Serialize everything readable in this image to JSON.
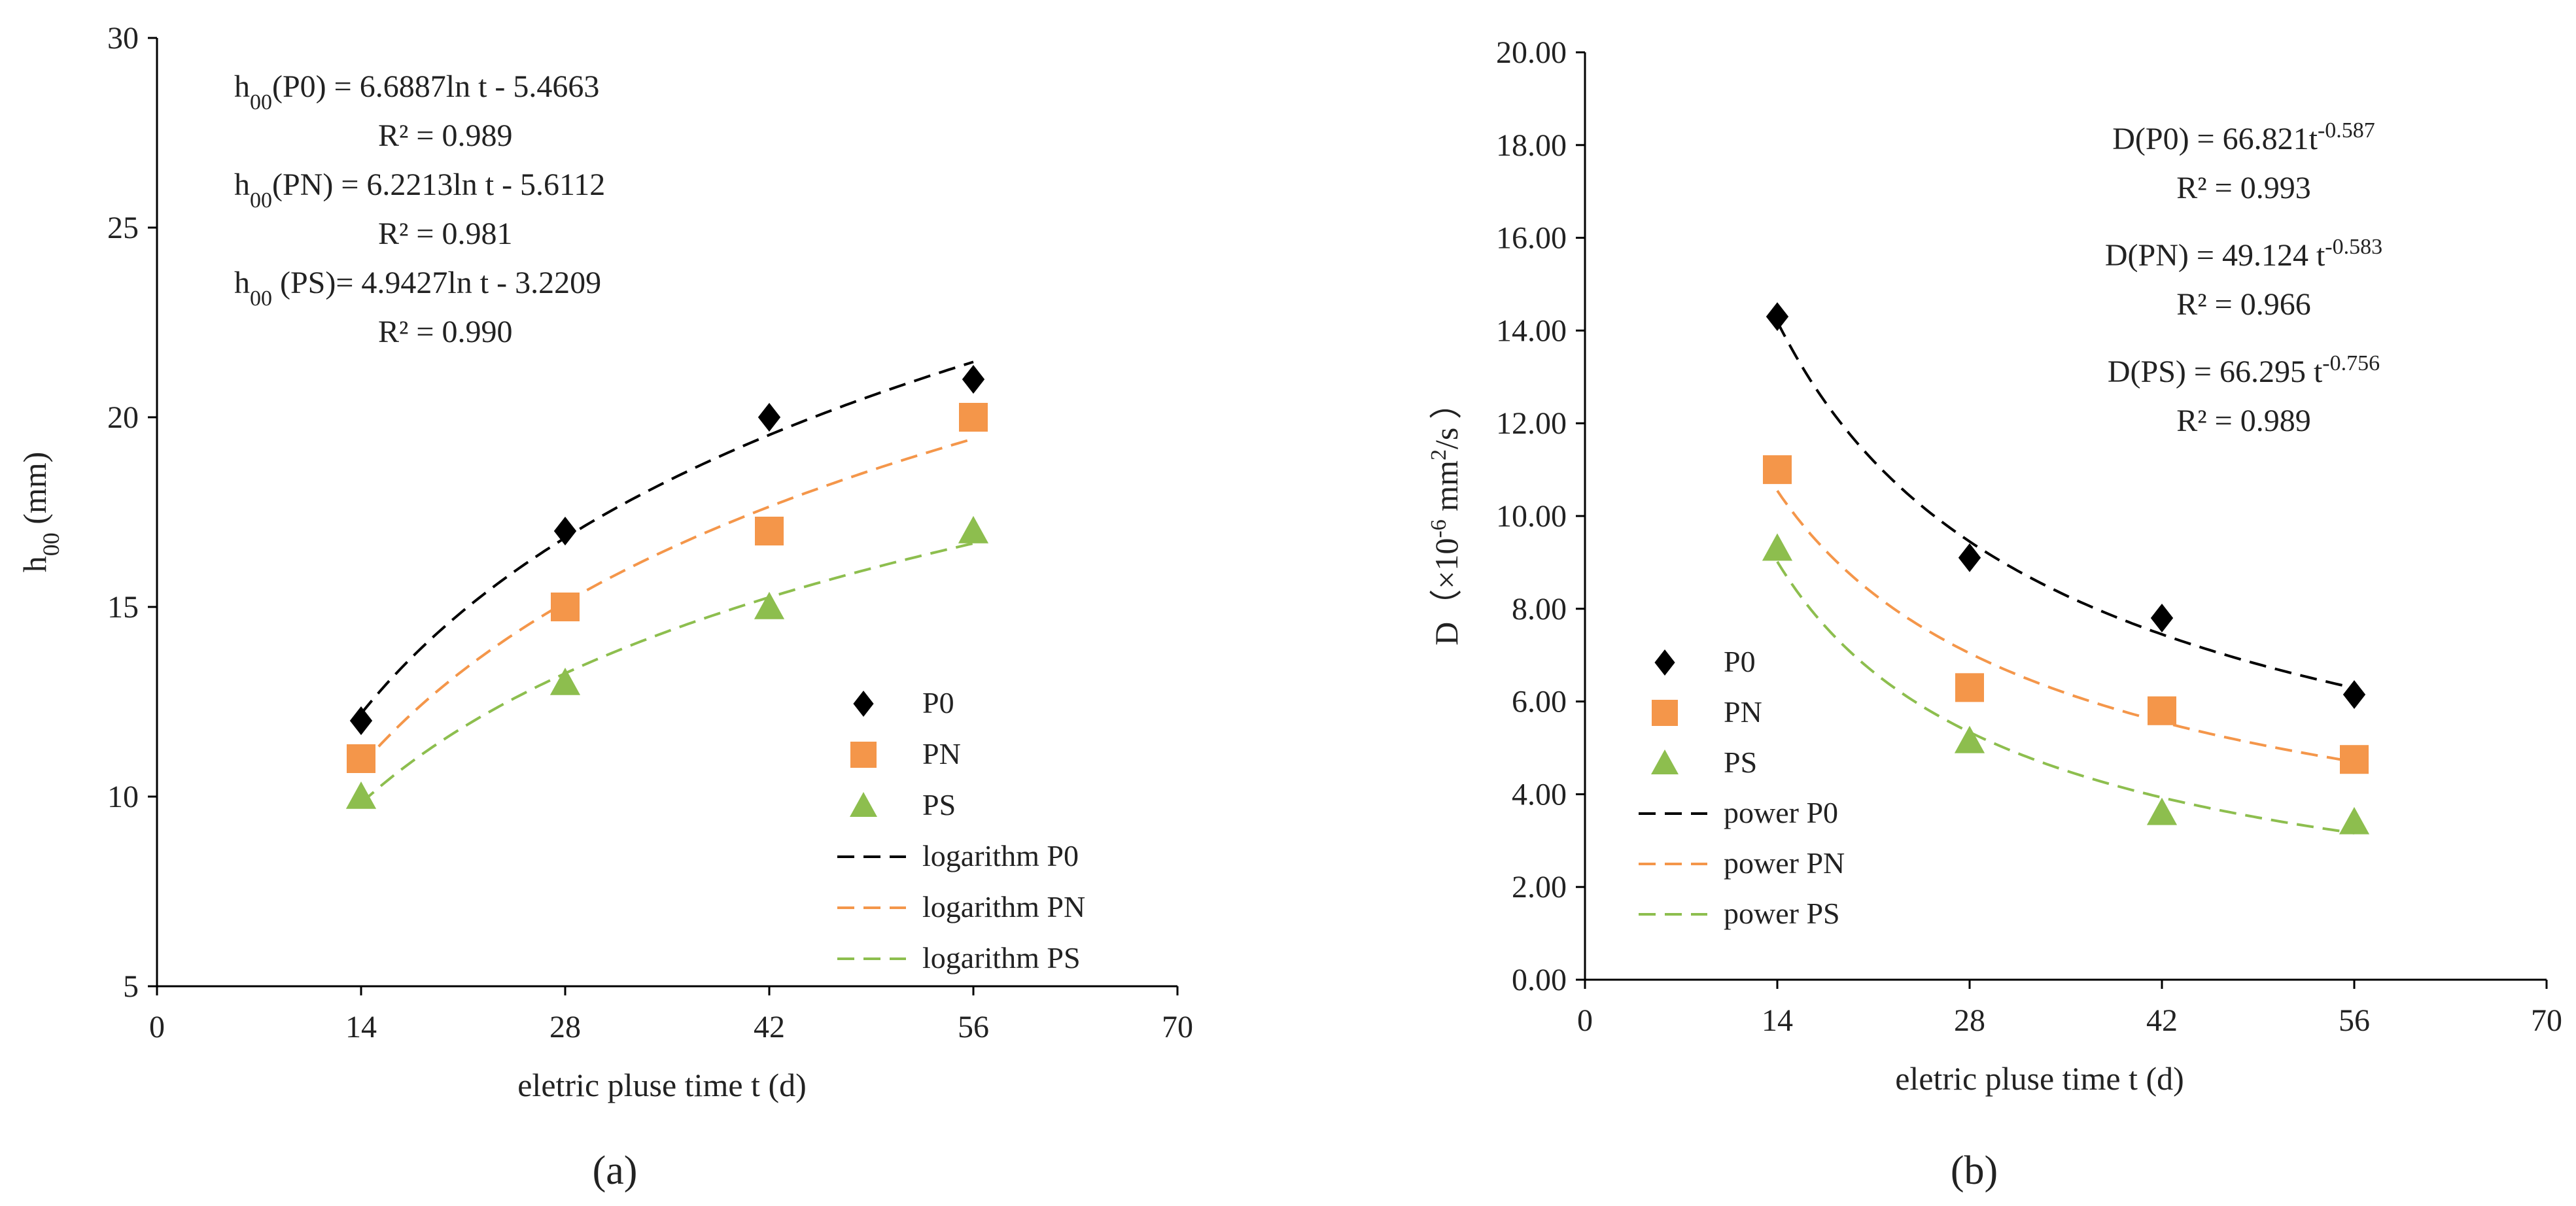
{
  "chart_data": [
    {
      "type": "scatter",
      "panel_label": "(a)",
      "xlabel": "eletric pluse time t (d)",
      "ylabel": "h00 (mm)",
      "ylabel_main": "h",
      "ylabel_sub": "00",
      "ylabel_unit": " (mm)",
      "xlim": [
        0,
        70
      ],
      "ylim": [
        5,
        30
      ],
      "xticks": [
        0,
        14,
        28,
        42,
        56,
        70
      ],
      "yticks": [
        5,
        10,
        15,
        20,
        25,
        30
      ],
      "ytick_decimals": 0,
      "x": [
        14,
        28,
        42,
        56
      ],
      "series": [
        {
          "name": "P0",
          "marker": "diamond",
          "color": "#000000",
          "values": [
            12,
            17,
            20,
            21
          ]
        },
        {
          "name": "PN",
          "marker": "square",
          "color": "#F4964A",
          "values": [
            11,
            15,
            17,
            20
          ]
        },
        {
          "name": "PS",
          "marker": "triangle",
          "color": "#8DBE4E",
          "values": [
            10,
            13,
            15,
            17
          ]
        }
      ],
      "fits": [
        {
          "name": "logarithm P0",
          "kind": "log",
          "a": 6.6887,
          "b": -5.4663,
          "color": "#000000"
        },
        {
          "name": "logarithm PN",
          "kind": "log",
          "a": 6.2213,
          "b": -5.6112,
          "color": "#F4964A"
        },
        {
          "name": "logarithm PS",
          "kind": "log",
          "a": 4.9427,
          "b": -3.2209,
          "color": "#8DBE4E"
        }
      ],
      "equations": [
        {
          "lhs_main": "h",
          "lhs_sub": "00",
          "lhs_arg": "(P0)",
          "rhs": " = 6.6887ln  t - 5.4663",
          "r2": "R² = 0.989"
        },
        {
          "lhs_main": "h",
          "lhs_sub": "00",
          "lhs_arg": "(PN)",
          "rhs": " = 6.2213ln  t - 5.6112",
          "r2": "R² = 0.981"
        },
        {
          "lhs_main": "h",
          "lhs_sub": "00",
          "lhs_arg": " (PS)",
          "rhs": "= 4.9427ln  t - 3.2209",
          "r2": "R² = 0.990"
        }
      ]
    },
    {
      "type": "scatter",
      "panel_label": "(b)",
      "xlabel": "eletric pluse time t (d)",
      "ylabel": "D（×10-6  mm2/s ）",
      "ylabel_main": "D（×10",
      "ylabel_sup1": "-6",
      "ylabel_mid": "  mm",
      "ylabel_sup2": "2",
      "ylabel_end": "/s ）",
      "xlim": [
        0,
        70
      ],
      "ylim": [
        0,
        20
      ],
      "xticks": [
        0,
        14,
        28,
        42,
        56,
        70
      ],
      "yticks": [
        0,
        2,
        4,
        6,
        8,
        10,
        12,
        14,
        16,
        18,
        20
      ],
      "ytick_decimals": 2,
      "x": [
        14,
        28,
        42,
        56
      ],
      "series": [
        {
          "name": "P0",
          "marker": "diamond",
          "color": "#000000",
          "values": [
            14.3,
            9.1,
            7.8,
            6.15
          ]
        },
        {
          "name": "PN",
          "marker": "square",
          "color": "#F4964A",
          "values": [
            11.0,
            6.3,
            5.8,
            4.75
          ]
        },
        {
          "name": "PS",
          "marker": "triangle",
          "color": "#8DBE4E",
          "values": [
            9.3,
            5.15,
            3.6,
            3.4
          ]
        }
      ],
      "fits": [
        {
          "name": "power P0",
          "kind": "power",
          "a": 66.821,
          "b": -0.587,
          "color": "#000000"
        },
        {
          "name": "power PN",
          "kind": "power",
          "a": 49.124,
          "b": -0.583,
          "color": "#F4964A"
        },
        {
          "name": "power PS",
          "kind": "power",
          "a": 66.295,
          "b": -0.756,
          "color": "#8DBE4E"
        }
      ],
      "equations": [
        {
          "lhs": "D(P0) = 66.821t",
          "exp": "-0.587",
          "r2": "R² = 0.993"
        },
        {
          "lhs": "D(PN) = 49.124 t",
          "exp": "-0.583",
          "r2": "R² = 0.966"
        },
        {
          "lhs": "D(PS) = 66.295 t",
          "exp": "-0.756",
          "r2": "R² = 0.989"
        }
      ]
    }
  ]
}
